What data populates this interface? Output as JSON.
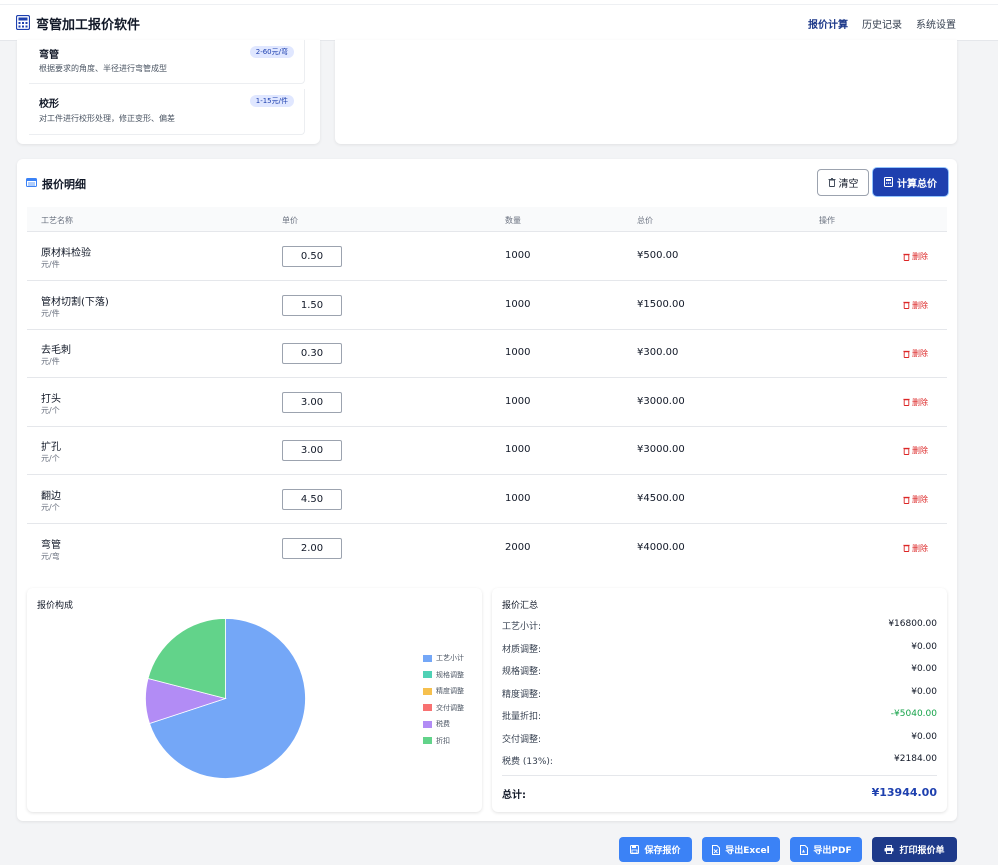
{
  "app": {
    "title": "弯管加工报价软件"
  },
  "nav": [
    {
      "label": "报价计算"
    },
    {
      "label": "历史记录"
    },
    {
      "label": "系统设置"
    }
  ],
  "processes": [
    {
      "name": "弯管",
      "desc": "根据要求的角度、半径进行弯管成型",
      "price": "2-60元/弯"
    },
    {
      "name": "校形",
      "desc": "对工件进行校形处理，修正变形、偏差",
      "price": "1-15元/件"
    }
  ],
  "section": {
    "title": "报价明细",
    "clear_label": "清空",
    "calc_label": "计算总价"
  },
  "table": {
    "headers": [
      "工艺名称",
      "单价",
      "数量",
      "总价",
      "操作"
    ],
    "delete_label": "删除",
    "rows": [
      {
        "name": "原材料检验",
        "unit": "元/件",
        "price": "0.50",
        "qty": "1000",
        "total": "¥500.00"
      },
      {
        "name": "管材切割(下落)",
        "unit": "元/件",
        "price": "1.50",
        "qty": "1000",
        "total": "¥1500.00"
      },
      {
        "name": "去毛刺",
        "unit": "元/件",
        "price": "0.30",
        "qty": "1000",
        "total": "¥300.00"
      },
      {
        "name": "打头",
        "unit": "元/个",
        "price": "3.00",
        "qty": "1000",
        "total": "¥3000.00"
      },
      {
        "name": "扩孔",
        "unit": "元/个",
        "price": "3.00",
        "qty": "1000",
        "total": "¥3000.00"
      },
      {
        "name": "翻边",
        "unit": "元/个",
        "price": "4.50",
        "qty": "1000",
        "total": "¥4500.00"
      },
      {
        "name": "弯管",
        "unit": "元/弯",
        "price": "2.00",
        "qty": "2000",
        "total": "¥4000.00"
      }
    ]
  },
  "chart_data": {
    "type": "pie",
    "title": "报价构成",
    "labels": [
      "工艺小计",
      "规格调整",
      "精度调整",
      "交付调整",
      "税费",
      "折扣"
    ],
    "values": [
      16800,
      0,
      0,
      0,
      2184,
      5040
    ],
    "colors": [
      "#74a7f7",
      "#4fd1b5",
      "#f6c04e",
      "#f87171",
      "#b28cf5",
      "#62d38a"
    ],
    "legend": "right"
  },
  "summary": {
    "title": "报价汇总",
    "rows": [
      {
        "label": "工艺小计:",
        "value": "¥16800.00"
      },
      {
        "label": "材质调整:",
        "value": "¥0.00"
      },
      {
        "label": "规格调整:",
        "value": "¥0.00"
      },
      {
        "label": "精度调整:",
        "value": "¥0.00"
      },
      {
        "label": "批量折扣:",
        "value": "-¥5040.00",
        "color": "#16a34a"
      },
      {
        "label": "交付调整:",
        "value": "¥0.00"
      },
      {
        "label": "税费 (13%):",
        "value": "¥2184.00"
      }
    ],
    "total_label": "总计:",
    "total_value": "¥13944.00"
  },
  "actions": {
    "save": "保存报价",
    "excel": "导出Excel",
    "pdf": "导出PDF",
    "print": "打印报价单"
  }
}
